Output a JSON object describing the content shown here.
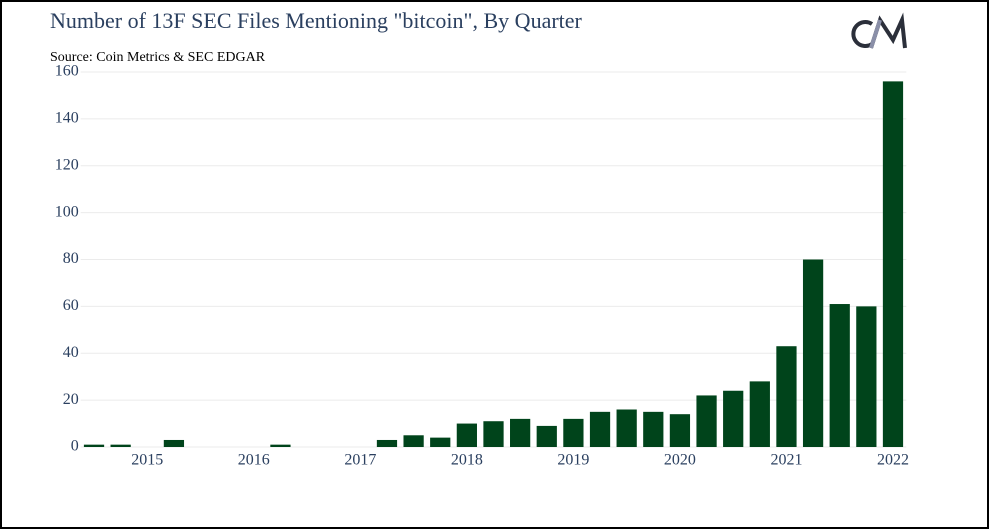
{
  "chart_data": {
    "type": "bar",
    "title": "Number of 13F SEC Files Mentioning \"bitcoin\", By Quarter",
    "subtitle": "Source: Coin Metrics & SEC EDGAR",
    "categories": [
      null,
      null,
      "2015",
      null,
      null,
      null,
      "2016",
      null,
      null,
      null,
      "2017",
      null,
      null,
      null,
      "2018",
      null,
      null,
      null,
      "2019",
      null,
      null,
      null,
      "2020",
      null,
      null,
      null,
      "2021",
      null,
      null,
      null,
      "2022"
    ],
    "values": [
      1,
      1,
      0,
      3,
      0,
      0,
      0,
      1,
      0,
      0,
      0,
      3,
      5,
      4,
      10,
      11,
      12,
      9,
      12,
      15,
      16,
      15,
      14,
      22,
      24,
      28,
      43,
      80,
      61,
      60,
      156
    ],
    "color": "#00441b",
    "ylim": [
      0,
      160
    ],
    "yticks": [
      0,
      20,
      40,
      60,
      80,
      100,
      120,
      140,
      160
    ],
    "grid": true
  }
}
